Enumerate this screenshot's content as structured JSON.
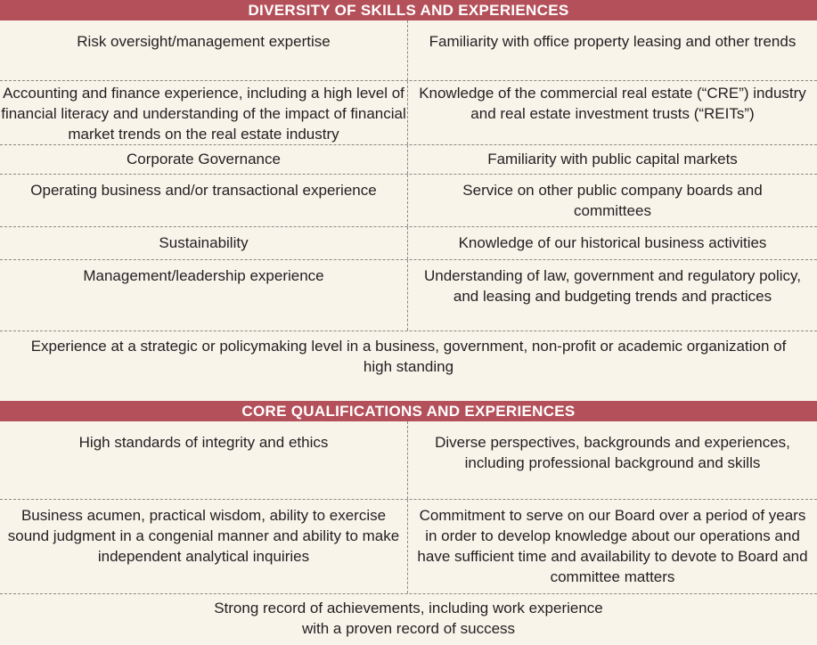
{
  "diversity": {
    "header": "DIVERSITY OF SKILLS AND EXPERIENCES",
    "rows": [
      {
        "left": "Risk oversight/management expertise",
        "right": "Familiarity with office property leasing and other trends"
      },
      {
        "left": "Accounting and finance experience, including a high level of financial literacy and understanding of the impact of financial market trends on the real estate industry",
        "right": "Knowledge of the commercial real estate (“CRE”) industry and real estate investment trusts (“REITs”)"
      },
      {
        "left": "Corporate Governance",
        "right": "Familiarity with public capital markets"
      },
      {
        "left": "Operating business and/or transactional experience",
        "right": "Service on other public company boards and committees"
      },
      {
        "left": "Sustainability",
        "right": "Knowledge of our historical business activities"
      },
      {
        "left": "Management/leadership experience",
        "right": "Understanding of law, government and regulatory policy, and leasing and budgeting trends and practices"
      }
    ],
    "full": "Experience at a strategic or policymaking level in a business, government, non-profit or academic organization of high standing"
  },
  "core": {
    "header": "CORE QUALIFICATIONS AND EXPERIENCES",
    "rows": [
      {
        "left": "High standards of integrity and ethics",
        "right": "Diverse perspectives, backgrounds and experiences, including professional background and skills"
      },
      {
        "left": "Business acumen, practical wisdom, ability to exercise sound judgment in a congenial manner and ability to make independent analytical inquiries",
        "right": "Commitment to serve on our Board over a period of years in order to develop knowledge about our operations and have sufficient time and availability to devote to Board and committee matters"
      }
    ],
    "full": "Strong record of achievements, including work experience with a proven record of success"
  }
}
